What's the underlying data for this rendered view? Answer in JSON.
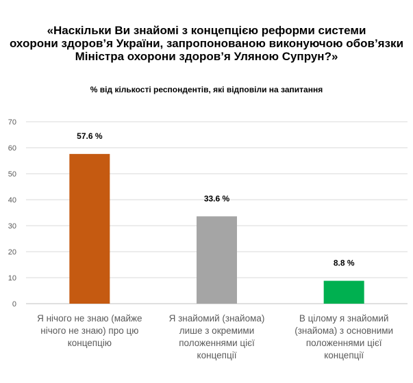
{
  "chart_data": {
    "type": "bar",
    "title_lines": [
      "«Наскільки Ви знайомі з концепцією реформи системи",
      "охорони здоров’я України, запропонованою виконуючою обов’язки",
      "Міністра охорони здоров’я Уляною Супрун?»"
    ],
    "subtitle": "% від кількості респондентів, які відповіли на запитання",
    "categories": [
      [
        "Я нічого не знаю (майже",
        "нічого не знаю) про цю",
        "концепцію"
      ],
      [
        "Я знайомий (знайома)",
        "лише з окремими",
        "положеннями цієї",
        "концепції"
      ],
      [
        "В цілому я знайомий",
        "(знайома) з основними",
        "положеннями цієї",
        "концепції"
      ]
    ],
    "values": [
      57.6,
      33.6,
      8.8
    ],
    "data_labels": [
      "57.6 %",
      "33.6 %",
      "8.8 %"
    ],
    "colors": [
      "#C55A11",
      "#A5A5A5",
      "#00B050"
    ],
    "ylim": [
      0,
      70
    ],
    "yticks": [
      0,
      10,
      20,
      30,
      40,
      50,
      60,
      70
    ],
    "grid": true
  }
}
